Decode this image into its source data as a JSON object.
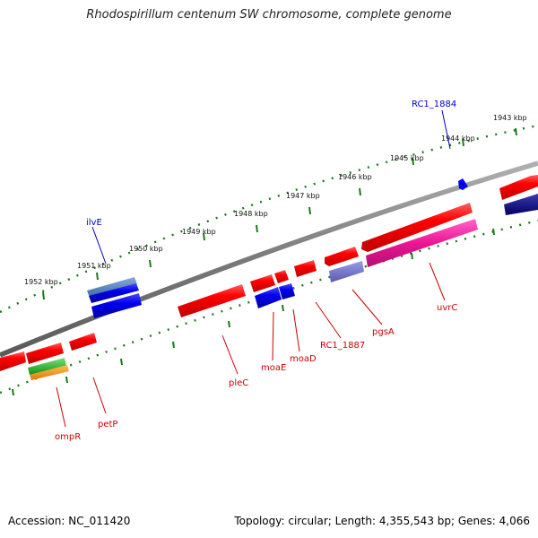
{
  "title": "Rhodospirillum centenum SW chromosome, complete genome",
  "footer": {
    "accession": "Accession: NC_011420",
    "summary": "Topology: circular; Length: 4,355,543 bp; Genes: 4,066"
  },
  "colors": {
    "backbone": "#808080",
    "ruler": "#1a7a1a",
    "forward_gene": "#e80000",
    "blue_gene": "#0000e0",
    "label_reverse": "#cc0000",
    "label_forward": "#0000cc"
  },
  "kbp_ticks": [
    "1943 kbp",
    "1944 kbp",
    "1945 kbp",
    "1946 kbp",
    "1947 kbp",
    "1948 kbp",
    "1949 kbp",
    "1950 kbp",
    "1951 kbp",
    "1952 kbp"
  ],
  "gene_labels": {
    "ilvE": "ilvE",
    "RC1_1884": "RC1_1884",
    "ompR": "ompR",
    "petP": "petP",
    "pleC": "pleC",
    "moaE": "moaE",
    "moaD": "moaD",
    "RC1_1887": "RC1_1887",
    "pgsA": "pgsA",
    "uvrC": "uvrC"
  }
}
